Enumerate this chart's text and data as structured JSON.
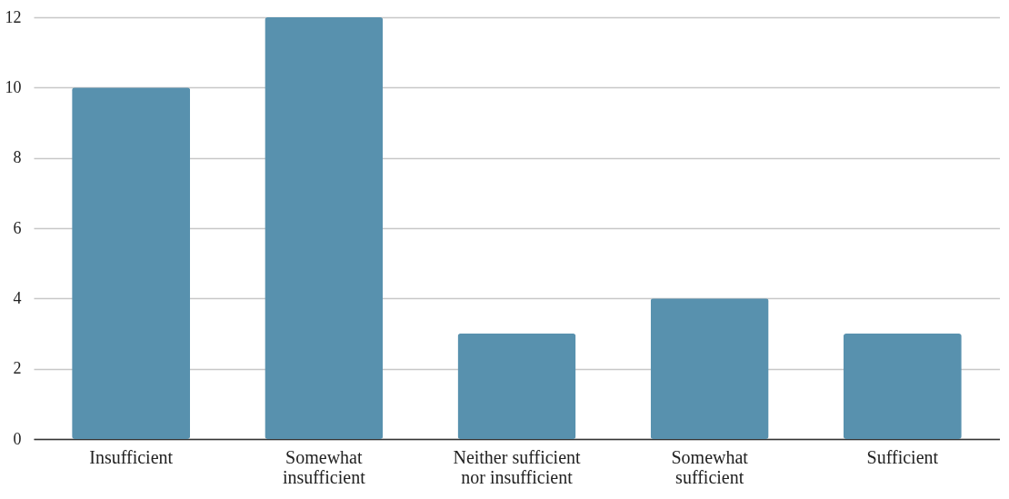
{
  "chart_data": {
    "type": "bar",
    "categories": [
      "Insufficient",
      "Somewhat insufficient",
      "Neither sufficient nor insufficient",
      "Somewhat sufficient",
      "Sufficient"
    ],
    "values": [
      10,
      12,
      3,
      4,
      3
    ],
    "color": "#5891ae",
    "ylim": [
      0,
      12
    ],
    "yticks": [
      0,
      2,
      4,
      6,
      8,
      10,
      12
    ],
    "grid": "y"
  }
}
